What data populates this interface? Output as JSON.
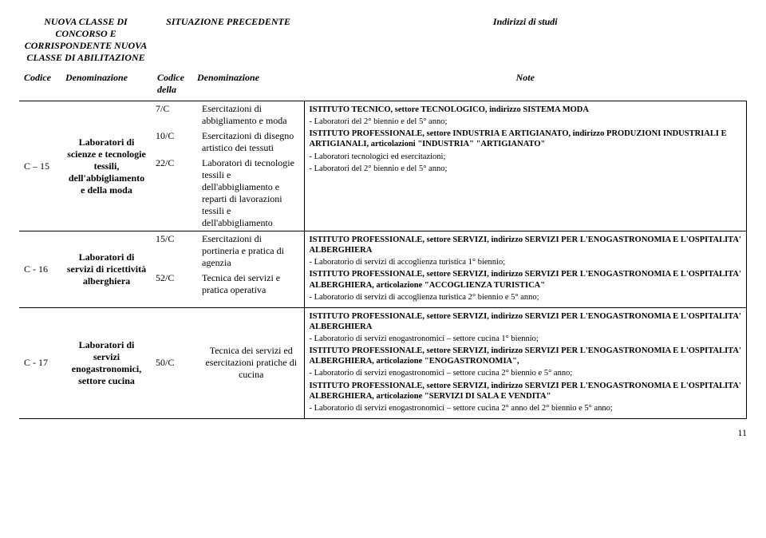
{
  "header": {
    "col1_title": "NUOVA CLASSE DI CONCORSO E CORRISPONDENTE NUOVA CLASSE DI ABILITAZIONE",
    "col2_title": "SITUAZIONE PRECEDENTE",
    "col3_title": "Indirizzi di studi",
    "sub_codice": "Codice",
    "sub_denominazione": "Denominazione",
    "sub_codice_della": "Codice della",
    "sub_denominazione2": "Denominazione",
    "sub_note": "Note"
  },
  "rows": [
    {
      "codice": "C – 15",
      "denominazione": "Laboratori di scienze e tecnologie tessili, dell'abbigliamento e della moda",
      "subitems": [
        {
          "code": "7/C",
          "text": "Esercitazioni di abbigliamento e moda"
        },
        {
          "code": "10/C",
          "text": "Esercitazioni di disegno artistico dei tessuti"
        },
        {
          "code": "22/C",
          "text": "Laboratori di tecnologie tessili e dell'abbigliamento e reparti di lavorazioni tessili e dell'abbigliamento"
        }
      ],
      "note": "ISTITUTO TECNICO, settore TECNOLOGICO, indirizzo SISTEMA MODA\n- Laboratori del 2° biennio e del 5° anno;\nISTITUTO PROFESSIONALE, settore INDUSTRIA E ARTIGIANATO, indirizzo PRODUZIONI INDUSTRIALI E ARTIGIANALI, articolazioni \"INDUSTRIA\" \"ARTIGIANATO\"\n- Laboratori tecnologici ed esercitazioni;\n- Laboratori del 2° biennio e del 5° anno;"
    },
    {
      "codice": "C - 16",
      "denominazione": "Laboratori di servizi di ricettività alberghiera",
      "subitems": [
        {
          "code": "15/C",
          "text": "Esercitazioni di portineria e pratica di agenzia"
        },
        {
          "code": "52/C",
          "text": "Tecnica dei servizi e pratica operativa"
        }
      ],
      "note": "ISTITUTO PROFESSIONALE, settore SERVIZI, indirizzo SERVIZI PER L'ENOGASTRONOMIA E L'OSPITALITA' ALBERGHIERA\n- Laboratorio di servizi di accoglienza turistica 1° biennio;\nISTITUTO PROFESSIONALE, settore SERVIZI, indirizzo SERVIZI PER L'ENOGASTRONOMIA E L'OSPITALITA' ALBERGHIERA, articolazione \"ACCOGLIENZA TURISTICA\"\n- Laboratorio di servizi di accoglienza turistica 2° biennio e 5° anno;"
    },
    {
      "codice": "C - 17",
      "denominazione": "Laboratori di servizi enogastronomici, settore cucina",
      "subitems": [
        {
          "code": "50/C",
          "text": "Tecnica dei servizi ed esercitazioni pratiche di cucina"
        }
      ],
      "subdenom_align": "center",
      "note": "ISTITUTO PROFESSIONALE, settore SERVIZI, indirizzo SERVIZI PER L'ENOGASTRONOMIA E L'OSPITALITA' ALBERGHIERA\n- Laboratorio di servizi enogastronomici – settore cucina 1° biennio;\nISTITUTO PROFESSIONALE, settore SERVIZI, indirizzo SERVIZI PER L'ENOGASTRONOMIA E L'OSPITALITA' ALBERGHIERA, articolazione \"ENOGASTRONOMIA\",\n- Laboratorio di servizi enogastronomici – settore cucina 2° biennio e 5° anno;\nISTITUTO PROFESSIONALE, settore SERVIZI, indirizzo SERVIZI PER L'ENOGASTRONOMIA E L'OSPITALITA' ALBERGHIERA, articolazione \"SERVIZI DI SALA E VENDITA\"\n- Laboratorio di servizi enogastronomici – settore cucina 2° anno del  2° biennio e 5° anno;"
    }
  ],
  "page_number": "11"
}
